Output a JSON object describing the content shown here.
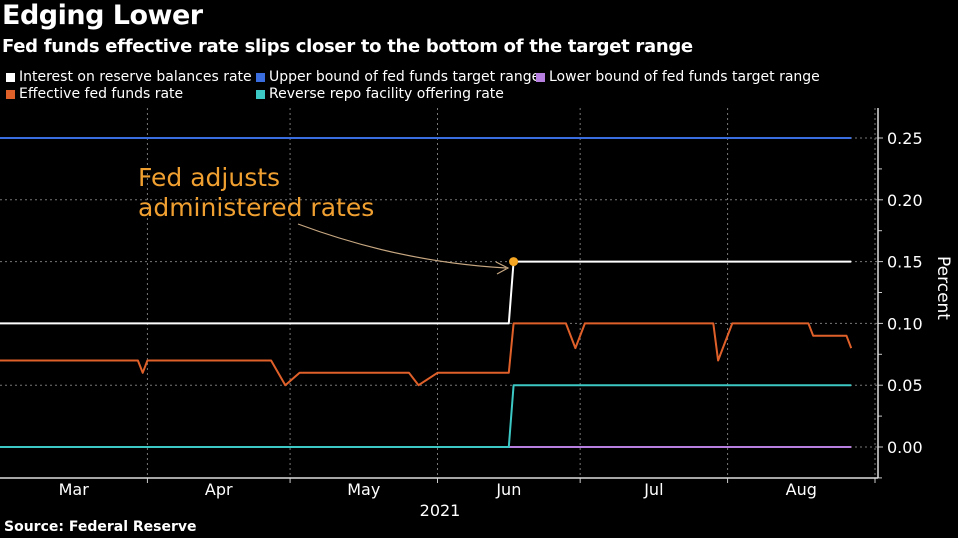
{
  "title": "Edging Lower",
  "subtitle": "Fed funds effective rate slips closer to the bottom of the target range",
  "source": "Source: Federal Reserve",
  "chart_data": {
    "type": "line",
    "ylabel": "Percent",
    "xlabel": "2021",
    "ylim": [
      -0.025,
      0.275
    ],
    "xlim": [
      "2021-03-01",
      "2021-09-01"
    ],
    "y_ticks": [
      "0.00",
      "0.05",
      "0.10",
      "0.15",
      "0.20",
      "0.25"
    ],
    "y_tick_values": [
      0,
      0.05,
      0.1,
      0.15,
      0.2,
      0.25
    ],
    "x_tick_labels": [
      "Mar",
      "Apr",
      "May",
      "Jun",
      "Jul",
      "Aug"
    ],
    "x_month_starts": [
      "2021-03-01",
      "2021-04-01",
      "2021-05-01",
      "2021-06-01",
      "2021-07-01",
      "2021-08-01",
      "2021-09-01"
    ],
    "grid": true,
    "legend_position": "top",
    "series": [
      {
        "name": "Interest on reserve balances rate",
        "color": "#ffffff",
        "points": [
          [
            "2021-03-01",
            0.1
          ],
          [
            "2021-06-16",
            0.1
          ],
          [
            "2021-06-17",
            0.15
          ],
          [
            "2021-08-27",
            0.15
          ]
        ]
      },
      {
        "name": "Upper bound of fed funds target range",
        "color": "#3a6ee0",
        "points": [
          [
            "2021-03-01",
            0.25
          ],
          [
            "2021-08-27",
            0.25
          ]
        ]
      },
      {
        "name": "Lower bound of fed funds target range",
        "color": "#b77fe0",
        "points": [
          [
            "2021-03-01",
            0.0
          ],
          [
            "2021-08-27",
            0.0
          ]
        ]
      },
      {
        "name": "Effective fed funds rate",
        "color": "#e0602a",
        "points": [
          [
            "2021-03-01",
            0.07
          ],
          [
            "2021-03-30",
            0.07
          ],
          [
            "2021-03-31",
            0.06
          ],
          [
            "2021-04-01",
            0.07
          ],
          [
            "2021-04-27",
            0.07
          ],
          [
            "2021-04-30",
            0.05
          ],
          [
            "2021-05-03",
            0.06
          ],
          [
            "2021-05-26",
            0.06
          ],
          [
            "2021-05-28",
            0.05
          ],
          [
            "2021-06-01",
            0.06
          ],
          [
            "2021-06-16",
            0.06
          ],
          [
            "2021-06-17",
            0.1
          ],
          [
            "2021-06-28",
            0.1
          ],
          [
            "2021-06-30",
            0.08
          ],
          [
            "2021-07-02",
            0.1
          ],
          [
            "2021-07-29",
            0.1
          ],
          [
            "2021-07-30",
            0.07
          ],
          [
            "2021-08-02",
            0.1
          ],
          [
            "2021-08-18",
            0.1
          ],
          [
            "2021-08-19",
            0.09
          ],
          [
            "2021-08-26",
            0.09
          ],
          [
            "2021-08-27",
            0.08
          ]
        ]
      },
      {
        "name": "Reverse repo facility offering rate",
        "color": "#3cc8c4",
        "points": [
          [
            "2021-03-01",
            0.0
          ],
          [
            "2021-06-16",
            0.0
          ],
          [
            "2021-06-17",
            0.05
          ],
          [
            "2021-08-27",
            0.05
          ]
        ]
      }
    ],
    "annotation": {
      "text_line1": "Fed adjusts",
      "text_line2": "administered rates",
      "date": "2021-06-17",
      "value": 0.15,
      "color": "#f0a030"
    }
  }
}
